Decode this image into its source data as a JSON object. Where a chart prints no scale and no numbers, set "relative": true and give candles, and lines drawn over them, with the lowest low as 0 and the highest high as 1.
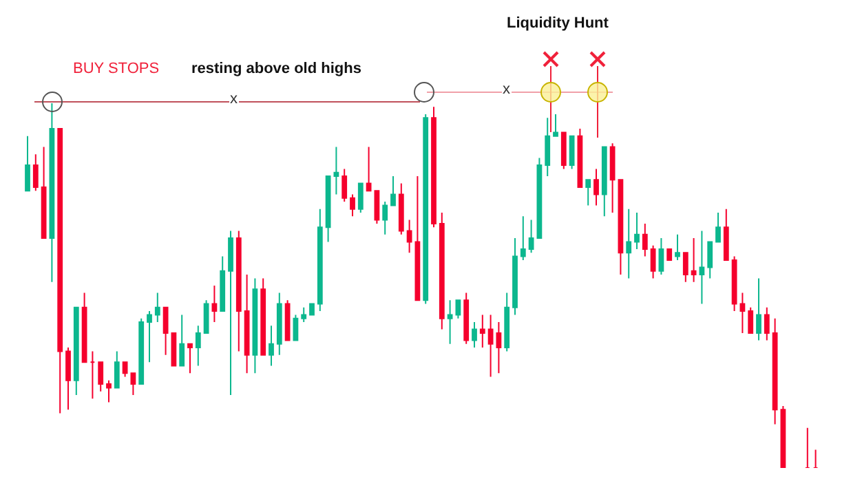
{
  "chart_data": {
    "type": "candlestick",
    "relative": true,
    "annotations": [
      "BUY STOPS",
      "resting above old highs",
      "Liquidity Hunt",
      "x",
      "x"
    ],
    "categories": [
      null,
      null,
      null,
      null,
      null,
      null,
      null,
      null,
      null,
      null,
      null,
      null,
      null,
      null,
      null,
      null,
      null,
      null,
      null,
      null,
      null,
      null,
      null,
      null,
      null,
      null,
      null,
      null,
      null,
      null,
      null,
      null,
      null,
      null,
      null,
      null,
      null,
      null,
      null,
      null,
      null,
      null,
      null,
      null,
      null,
      null,
      null,
      null,
      null,
      null,
      null,
      null,
      null,
      null,
      null,
      null,
      null,
      null,
      null,
      null,
      null,
      null,
      null,
      null,
      null,
      null,
      null,
      null,
      null,
      null,
      null,
      null,
      null,
      null,
      null,
      null,
      null,
      null,
      null,
      null,
      null,
      null,
      null,
      null,
      null,
      null,
      null,
      null,
      null,
      null,
      null,
      null,
      null,
      null,
      null,
      null,
      null,
      null
    ],
    "ohlc": [
      [
        0.76,
        0.91,
        0.76,
        0.83
      ],
      [
        0.83,
        0.86,
        0.76,
        0.77
      ],
      [
        0.77,
        0.88,
        0.63,
        0.63
      ],
      [
        0.63,
        1,
        0.51,
        0.93
      ],
      [
        0.93,
        0.93,
        0.15,
        0.32
      ],
      [
        0.32,
        0.33,
        0.16,
        0.24
      ],
      [
        0.24,
        0.44,
        0.2,
        0.44
      ],
      [
        0.44,
        0.48,
        0.29,
        0.29
      ],
      [
        0.29,
        0.32,
        0.19,
        0.29
      ],
      [
        0.29,
        0.29,
        0.21,
        0.23
      ],
      [
        0.23,
        0.24,
        0.18,
        0.22
      ],
      [
        0.22,
        0.32,
        0.22,
        0.29
      ],
      [
        0.29,
        0.29,
        0.25,
        0.26
      ],
      [
        0.26,
        0.26,
        0.2,
        0.23
      ],
      [
        0.23,
        0.41,
        0.23,
        0.4
      ],
      [
        0.4,
        0.43,
        0.29,
        0.42
      ],
      [
        0.42,
        0.48,
        0.4,
        0.44
      ],
      [
        0.44,
        0.44,
        0.31,
        0.37
      ],
      [
        0.37,
        0.37,
        0.28,
        0.28
      ],
      [
        0.28,
        0.42,
        0.28,
        0.34
      ],
      [
        0.34,
        0.34,
        0.26,
        0.33
      ],
      [
        0.33,
        0.39,
        0.28,
        0.37
      ],
      [
        0.37,
        0.46,
        0.37,
        0.45
      ],
      [
        0.45,
        0.5,
        0.4,
        0.43
      ],
      [
        0.43,
        0.58,
        0.43,
        0.54
      ],
      [
        0.54,
        0.65,
        0.2,
        0.63
      ],
      [
        0.63,
        0.65,
        0.32,
        0.43
      ],
      [
        0.43,
        0.53,
        0.26,
        0.31
      ],
      [
        0.31,
        0.52,
        0.26,
        0.49
      ],
      [
        0.49,
        0.52,
        0.31,
        0.31
      ],
      [
        0.31,
        0.39,
        0.28,
        0.34
      ],
      [
        0.34,
        0.48,
        0.31,
        0.45
      ],
      [
        0.45,
        0.46,
        0.35,
        0.35
      ],
      [
        0.35,
        0.42,
        0.35,
        0.41
      ],
      [
        0.41,
        0.44,
        0.4,
        0.42
      ],
      [
        0.42,
        0.45,
        0.42,
        0.45
      ],
      [
        0.45,
        0.71,
        0.43,
        0.66
      ],
      [
        0.66,
        0.8,
        0.62,
        0.8
      ],
      [
        0.8,
        0.88,
        0.75,
        0.81
      ],
      [
        0.8,
        0.82,
        0.73,
        0.74
      ],
      [
        0.74,
        0.75,
        0.69,
        0.71
      ],
      [
        0.71,
        0.78,
        0.7,
        0.78
      ],
      [
        0.78,
        0.88,
        0.76,
        0.76
      ],
      [
        0.76,
        0.76,
        0.67,
        0.68
      ],
      [
        0.68,
        0.73,
        0.64,
        0.72
      ],
      [
        0.72,
        0.8,
        0.72,
        0.75
      ],
      [
        0.75,
        0.78,
        0.64,
        0.65
      ],
      [
        0.65,
        0.68,
        0.59,
        0.62
      ],
      [
        0.62,
        0.8,
        0.46,
        0.46
      ],
      [
        0.46,
        0.97,
        0.45,
        0.96
      ],
      [
        0.96,
        0.99,
        0.66,
        0.67
      ],
      [
        0.67,
        0.7,
        0.38,
        0.41
      ],
      [
        0.41,
        0.46,
        0.34,
        0.42
      ],
      [
        0.42,
        0.46,
        0.41,
        0.46
      ],
      [
        0.46,
        0.48,
        0.34,
        0.35
      ],
      [
        0.35,
        0.4,
        0.33,
        0.38
      ],
      [
        0.38,
        0.42,
        0.33,
        0.37
      ],
      [
        0.38,
        0.42,
        0.25,
        0.34
      ],
      [
        0.37,
        0.4,
        0.26,
        0.33
      ],
      [
        0.33,
        0.48,
        0.32,
        0.44
      ],
      [
        0.44,
        0.63,
        0.42,
        0.58
      ],
      [
        0.58,
        0.69,
        0.57,
        0.6
      ],
      [
        0.6,
        0.68,
        0.59,
        0.63
      ],
      [
        0.63,
        0.85,
        0.63,
        0.83
      ],
      [
        0.83,
        0.96,
        0.8,
        0.91
      ],
      [
        0.91,
        0.97,
        0.91,
        0.92
      ],
      [
        0.92,
        0.92,
        0.82,
        0.83
      ],
      [
        0.83,
        0.91,
        0.82,
        0.91
      ],
      [
        0.91,
        0.93,
        0.77,
        0.77
      ],
      [
        0.77,
        0.79,
        0.72,
        0.79
      ],
      [
        0.79,
        0.82,
        0.72,
        0.75
      ],
      [
        0.75,
        0.88,
        0.69,
        0.88
      ],
      [
        0.88,
        0.89,
        0.7,
        0.79
      ],
      [
        0.79,
        0.79,
        0.53,
        0.59
      ],
      [
        0.59,
        0.71,
        0.52,
        0.62
      ],
      [
        0.62,
        0.7,
        0.6,
        0.64
      ],
      [
        0.64,
        0.67,
        0.58,
        0.6
      ],
      [
        0.6,
        0.61,
        0.52,
        0.54
      ],
      [
        0.54,
        0.63,
        0.53,
        0.6
      ],
      [
        0.6,
        0.6,
        0.57,
        0.57
      ],
      [
        0.58,
        0.64,
        0.57,
        0.59
      ],
      [
        0.59,
        0.59,
        0.51,
        0.53
      ],
      [
        0.54,
        0.63,
        0.51,
        0.53
      ],
      [
        0.53,
        0.65,
        0.45,
        0.55
      ],
      [
        0.55,
        0.62,
        0.52,
        0.62
      ],
      [
        0.62,
        0.7,
        0.62,
        0.66
      ],
      [
        0.66,
        0.71,
        0.57,
        0.57
      ],
      [
        0.57,
        0.58,
        0.43,
        0.45
      ],
      [
        0.45,
        0.48,
        0.37,
        0.43
      ],
      [
        0.43,
        0.44,
        0.37,
        0.37
      ],
      [
        0.37,
        0.52,
        0.35,
        0.42
      ],
      [
        0.42,
        0.44,
        0.35,
        0.37
      ],
      [
        0.37,
        0.41,
        0.12,
        0.16
      ],
      [
        0.16,
        0.17,
        0,
        0
      ],
      [
        null,
        null,
        null,
        null
      ],
      [
        null,
        null,
        null,
        null
      ],
      [
        0,
        0.11,
        0,
        0
      ],
      [
        0,
        0.05,
        0,
        0
      ]
    ]
  }
}
